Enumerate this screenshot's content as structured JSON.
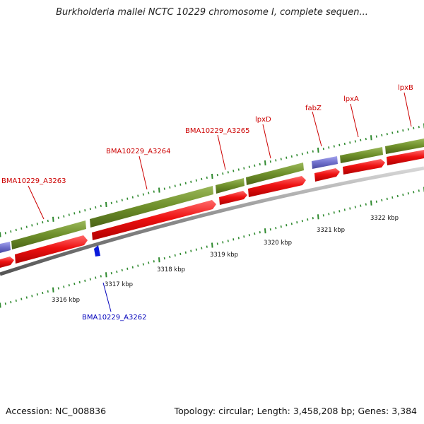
{
  "title": "Burkholderia mallei NCTC 10229 chromosome I, complete sequen...",
  "footer": {
    "accession": "Accession: NC_008836",
    "topology": "Topology: circular; Length: 3,458,208 bp; Genes: 3,384"
  },
  "colors": {
    "gene_upper": "#6e8f2a",
    "gene_lower": "#e8151a",
    "gene_blue": "#7070cc",
    "forward_label": "#cc0000",
    "reverse_label": "#0000bb",
    "ticks": "#2f8a2f",
    "backbone": "#8a8a8a"
  },
  "upper_ticks": [
    "3316 kbp",
    "3317 kbp",
    "3318 kbp",
    "3319 kbp",
    "3320 kbp",
    "3321 kbp",
    "3322 kbp"
  ],
  "forward_genes": [
    "BMA10229_A3263",
    "BMA10229_A3264",
    "BMA10229_A3265",
    "lpxD",
    "fabZ",
    "lpxA",
    "lpxB"
  ],
  "reverse_genes": [
    "BMA10229_A3262"
  ]
}
